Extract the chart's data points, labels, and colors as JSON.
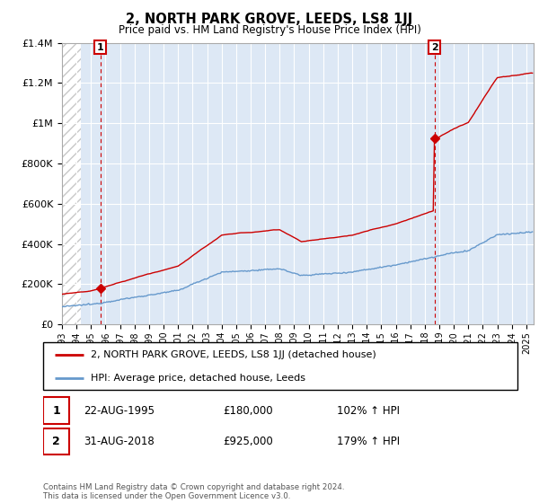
{
  "title": "2, NORTH PARK GROVE, LEEDS, LS8 1JJ",
  "subtitle": "Price paid vs. HM Land Registry's House Price Index (HPI)",
  "legend_label_red": "2, NORTH PARK GROVE, LEEDS, LS8 1JJ (detached house)",
  "legend_label_blue": "HPI: Average price, detached house, Leeds",
  "annotation1_date": "22-AUG-1995",
  "annotation1_price": "£180,000",
  "annotation1_hpi": "102% ↑ HPI",
  "annotation2_date": "31-AUG-2018",
  "annotation2_price": "£925,000",
  "annotation2_hpi": "179% ↑ HPI",
  "copyright": "Contains HM Land Registry data © Crown copyright and database right 2024.\nThis data is licensed under the Open Government Licence v3.0.",
  "sale1_year": 1995.65,
  "sale1_price": 180000,
  "sale2_year": 2018.66,
  "sale2_price": 925000,
  "red_color": "#cc0000",
  "blue_color": "#6699cc",
  "bg_color": "#dde8f5",
  "hatch_color": "#c8c8c8",
  "ylim": [
    0,
    1400000
  ],
  "xlim_start": 1993,
  "xlim_end": 2025.5,
  "yticks": [
    0,
    200000,
    400000,
    600000,
    800000,
    1000000,
    1200000,
    1400000
  ],
  "ytick_labels": [
    "£0",
    "£200K",
    "£400K",
    "£600K",
    "£800K",
    "£1M",
    "£1.2M",
    "£1.4M"
  ],
  "xticks": [
    1993,
    1994,
    1995,
    1996,
    1997,
    1998,
    1999,
    2000,
    2001,
    2002,
    2003,
    2004,
    2005,
    2006,
    2007,
    2008,
    2009,
    2010,
    2011,
    2012,
    2013,
    2014,
    2015,
    2016,
    2017,
    2018,
    2019,
    2020,
    2021,
    2022,
    2023,
    2024,
    2025
  ]
}
